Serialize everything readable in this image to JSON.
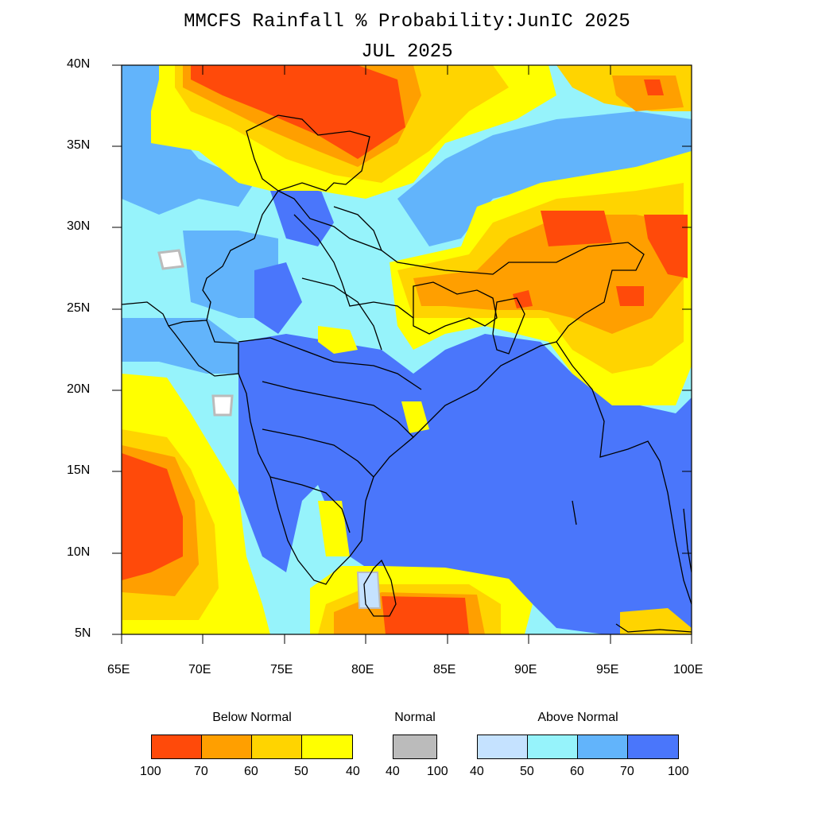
{
  "title": "MMCFS Rainfall % Probability:JunIC 2025",
  "subtitle": "JUL 2025",
  "map": {
    "lon_range": [
      65,
      100
    ],
    "lat_range": [
      5,
      40
    ],
    "x_ticks": [
      "65E",
      "70E",
      "75E",
      "80E",
      "85E",
      "90E",
      "95E",
      "100E"
    ],
    "y_ticks": [
      "40N",
      "35N",
      "30N",
      "25N",
      "20N",
      "15N",
      "10N",
      "5N"
    ]
  },
  "legend": {
    "below": {
      "label": "Below Normal",
      "colors": [
        "#ff4a0a",
        "#ff9f00",
        "#ffd400",
        "#ffff00"
      ],
      "ticks": [
        "100",
        "70",
        "60",
        "50",
        "40"
      ]
    },
    "normal": {
      "label": "Normal",
      "colors": [
        "#bbbbbb"
      ],
      "ticks": [
        "40",
        "100"
      ]
    },
    "above": {
      "label": "Above Normal",
      "colors": [
        "#c5e2ff",
        "#96f3fb",
        "#62b4fb",
        "#4a76fb"
      ],
      "ticks": [
        "40",
        "50",
        "60",
        "70",
        "100"
      ]
    }
  }
}
